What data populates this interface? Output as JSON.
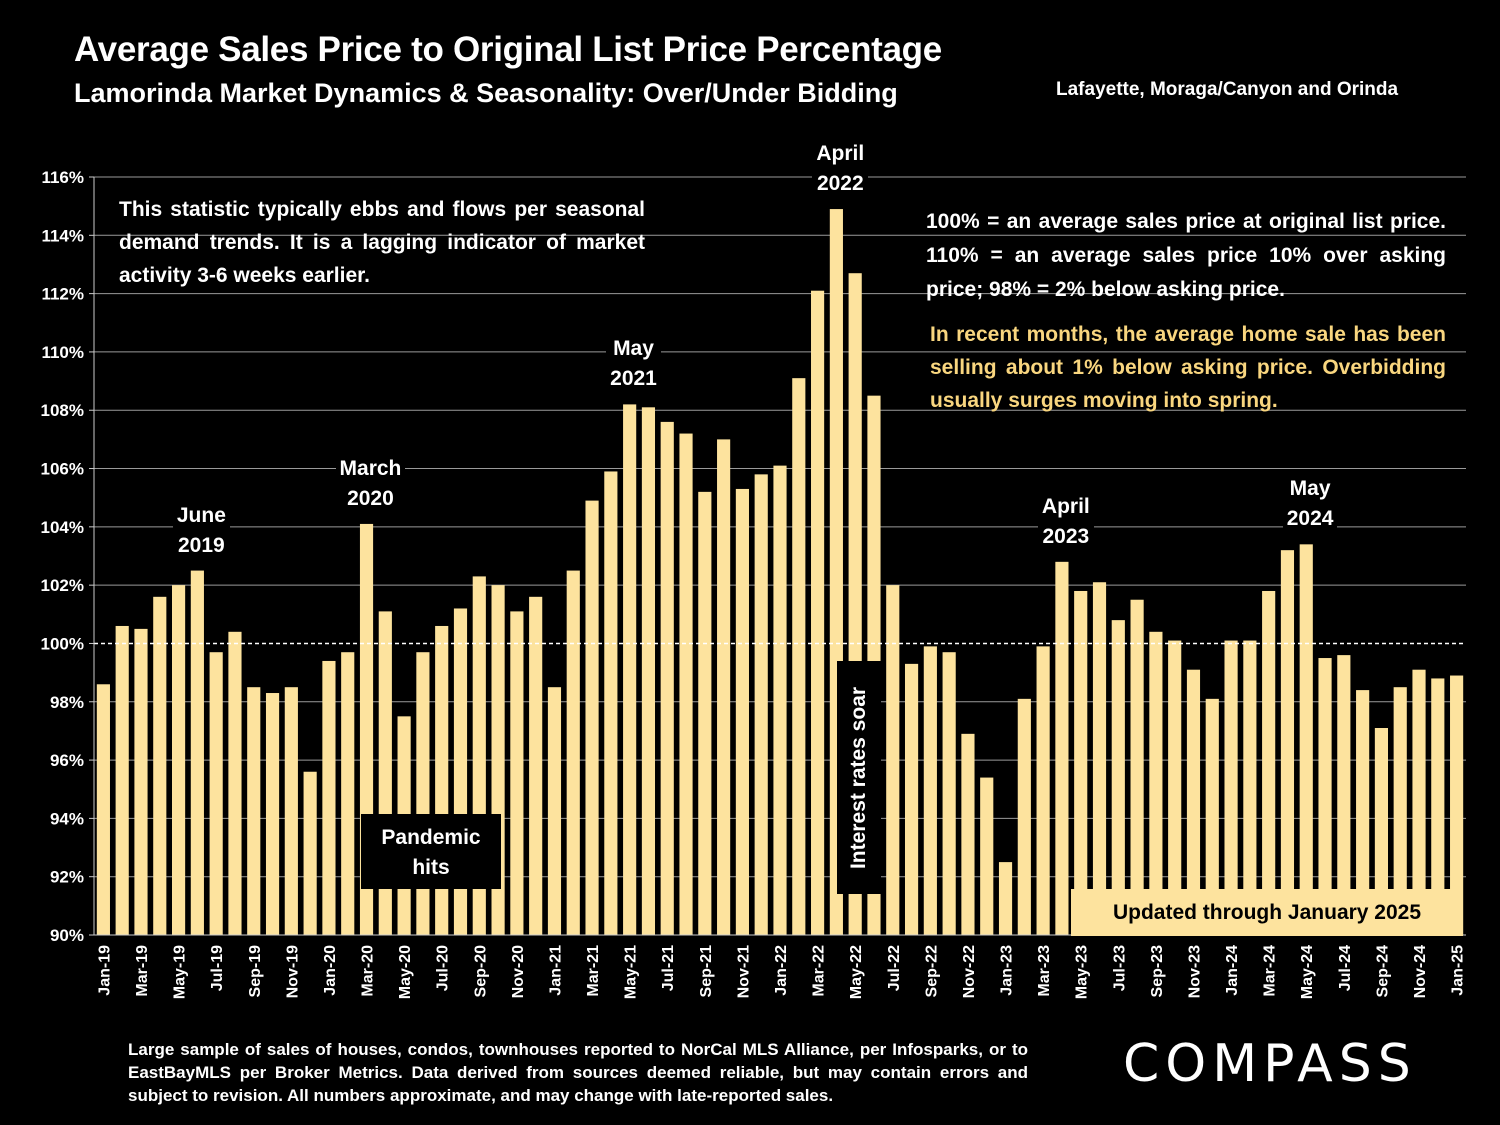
{
  "header": {
    "title": "Average Sales Price to Original List Price Percentage",
    "subtitle": "Lamorinda Market Dynamics & Seasonality: Over/Under Bidding",
    "region": "Lafayette, Moraga/Canyon and Orinda"
  },
  "annotations": {
    "left_note": "This statistic typically ebbs and flows per seasonal demand trends. It is a lagging indicator of market activity 3-6 weeks earlier.",
    "right_note": "100% = an average sales price at original list price. 110% = an average sales price 10% over asking price; 98% = 2% below asking price.",
    "recent_note": "In recent months, the average home sale has been selling about 1% below asking price. Overbidding usually surges moving into spring.",
    "pandemic": "Pandemic hits",
    "interest_rates": "Interest rates soar",
    "updated": "Updated through January 2025",
    "peaks": [
      {
        "label": "June\n2019",
        "month": "Jun-19"
      },
      {
        "label": "March\n2020",
        "month": "Mar-20"
      },
      {
        "label": "May\n2021",
        "month": "May-21"
      },
      {
        "label": "April\n2022",
        "month": "Apr-22"
      },
      {
        "label": "April\n2023",
        "month": "Apr-23"
      },
      {
        "label": "May\n2024",
        "month": "May-24"
      }
    ]
  },
  "footer": {
    "note": "Large sample of sales of houses, condos, townhouses reported to NorCal MLS Alliance, per Infosparks, or to EastBayMLS per Broker Metrics. Data derived from sources deemed reliable, but may contain errors and subject to revision. All numbers approximate, and may change with late-reported sales.",
    "logo": "COMPASS"
  },
  "colors": {
    "bar": "#fde39e",
    "background": "#000000",
    "text": "#ffffff",
    "highlight_text": "#f9d67f"
  },
  "chart_data": {
    "type": "bar",
    "ylim": [
      90,
      116
    ],
    "ytick_step": 2,
    "ytick_suffix": "%",
    "reference_line": 100,
    "xtick_labels": [
      "Jan-19",
      "Mar-19",
      "May-19",
      "Jul-19",
      "Sep-19",
      "Nov-19",
      "Jan-20",
      "Mar-20",
      "May-20",
      "Jul-20",
      "Sep-20",
      "Nov-20",
      "Jan-21",
      "Mar-21",
      "May-21",
      "Jul-21",
      "Sep-21",
      "Nov-21",
      "Jan-22",
      "Mar-22",
      "May-22",
      "Jul-22",
      "Sep-22",
      "Nov-22",
      "Jan-23",
      "Mar-23",
      "May-23",
      "Jul-23",
      "Sep-23",
      "Nov-23",
      "Jan-24",
      "Mar-24",
      "May-24",
      "Jul-24",
      "Sep-24",
      "Nov-24",
      "Jan-25"
    ],
    "categories": [
      "Jan-19",
      "Feb-19",
      "Mar-19",
      "Apr-19",
      "May-19",
      "Jun-19",
      "Jul-19",
      "Aug-19",
      "Sep-19",
      "Oct-19",
      "Nov-19",
      "Dec-19",
      "Jan-20",
      "Feb-20",
      "Mar-20",
      "Apr-20",
      "May-20",
      "Jun-20",
      "Jul-20",
      "Aug-20",
      "Sep-20",
      "Oct-20",
      "Nov-20",
      "Dec-20",
      "Jan-21",
      "Feb-21",
      "Mar-21",
      "Apr-21",
      "May-21",
      "Jun-21",
      "Jul-21",
      "Aug-21",
      "Sep-21",
      "Oct-21",
      "Nov-21",
      "Dec-21",
      "Jan-22",
      "Feb-22",
      "Mar-22",
      "Apr-22",
      "May-22",
      "Jun-22",
      "Jul-22",
      "Aug-22",
      "Sep-22",
      "Oct-22",
      "Nov-22",
      "Dec-22",
      "Jan-23",
      "Feb-23",
      "Mar-23",
      "Apr-23",
      "May-23",
      "Jun-23",
      "Jul-23",
      "Aug-23",
      "Sep-23",
      "Oct-23",
      "Nov-23",
      "Dec-23",
      "Jan-24",
      "Feb-24",
      "Mar-24",
      "Apr-24",
      "May-24",
      "Jun-24",
      "Jul-24",
      "Aug-24",
      "Sep-24",
      "Oct-24",
      "Nov-24",
      "Dec-24",
      "Jan-25"
    ],
    "values": [
      98.6,
      100.6,
      100.5,
      101.6,
      102.0,
      102.5,
      99.7,
      100.4,
      98.5,
      98.3,
      98.5,
      95.6,
      99.4,
      99.7,
      104.1,
      101.1,
      97.5,
      99.7,
      100.6,
      101.2,
      102.3,
      102.0,
      101.1,
      101.6,
      98.5,
      102.5,
      104.9,
      105.9,
      108.2,
      108.1,
      107.6,
      107.2,
      105.2,
      107.0,
      105.3,
      105.8,
      106.1,
      109.1,
      112.1,
      114.9,
      112.7,
      108.5,
      102.0,
      99.3,
      99.9,
      99.7,
      96.9,
      95.4,
      92.5,
      98.1,
      99.9,
      102.8,
      101.8,
      102.1,
      100.8,
      101.5,
      100.4,
      100.1,
      99.1,
      98.1,
      100.1,
      100.1,
      101.8,
      103.2,
      103.4,
      99.5,
      99.6,
      98.4,
      97.1,
      98.5,
      99.1,
      98.8,
      98.9
    ]
  }
}
